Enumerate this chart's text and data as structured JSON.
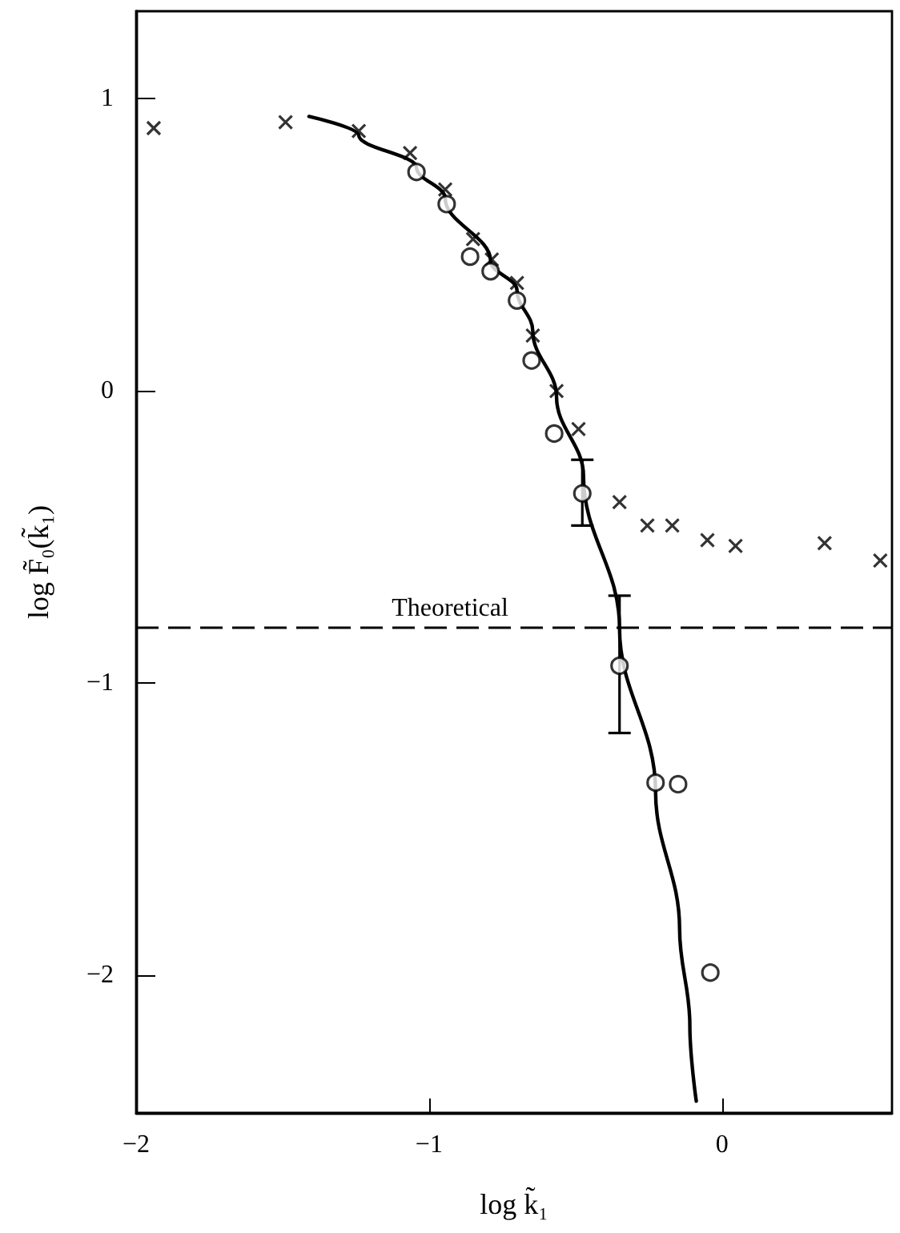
{
  "chart_data": {
    "type": "scatter",
    "xlabel": "log k̃₁",
    "ylabel": "log F̃₀(k̃₁)",
    "xlim": [
      -2,
      0.58
    ],
    "ylim": [
      -2.47,
      1.3
    ],
    "xticks": [
      -2,
      -1,
      0
    ],
    "yticks": [
      -2,
      -1,
      0,
      1
    ],
    "grid": false,
    "series": [
      {
        "marker": "cross",
        "color": "#000000",
        "x": [
          -1.94,
          -1.49,
          -1.24,
          -1.065,
          -0.945,
          -0.85,
          -0.786,
          -0.7,
          -0.646,
          -0.565,
          -0.49,
          -0.35,
          -0.255,
          -0.17,
          -0.05,
          0.046,
          0.35,
          0.54
        ],
        "values": [
          0.9,
          0.92,
          0.89,
          0.815,
          0.69,
          0.52,
          0.45,
          0.37,
          0.19,
          0.0,
          -0.13,
          -0.38,
          -0.46,
          -0.46,
          -0.51,
          -0.53,
          -0.52,
          -0.58
        ]
      },
      {
        "marker": "circle",
        "color": "#000000",
        "x": [
          -1.043,
          -0.94,
          -0.86,
          -0.79,
          -0.7,
          -0.65,
          -0.573,
          -0.477,
          -0.35,
          -0.227,
          -0.15,
          -0.04
        ],
        "values": [
          0.75,
          0.64,
          0.46,
          0.41,
          0.31,
          0.105,
          -0.145,
          -0.35,
          -0.94,
          -1.34,
          -1.345,
          -1.99
        ],
        "errors": [
          null,
          null,
          null,
          null,
          null,
          null,
          null,
          [
            -0.46,
            -0.235
          ],
          [
            -1.17,
            -0.7
          ],
          null,
          null,
          null
        ]
      },
      {
        "type": "line",
        "marker": "none",
        "color": "#000000",
        "x": [
          -1.41,
          -1.24,
          -1.043,
          -0.945,
          -0.79,
          -0.7,
          -0.646,
          -0.565,
          -0.473,
          -0.35,
          -0.227,
          -0.145,
          -0.11,
          -0.088
        ],
        "values": [
          0.94,
          0.875,
          0.765,
          0.66,
          0.445,
          0.345,
          0.205,
          -0.02,
          -0.29,
          -0.81,
          -1.37,
          -1.84,
          -2.17,
          -2.43
        ]
      }
    ],
    "ref_lines": [
      {
        "axis": "y",
        "value": -0.81,
        "label": "Theoretical",
        "line_style": "dashed",
        "color": "#000000"
      }
    ]
  }
}
